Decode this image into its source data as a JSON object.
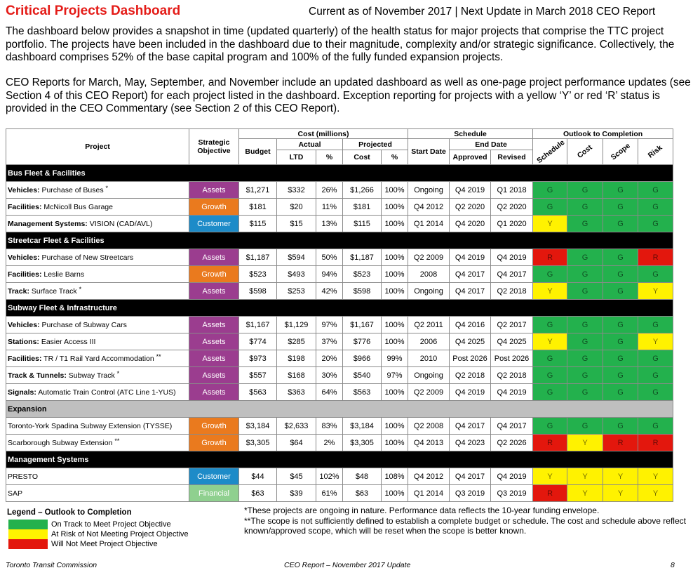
{
  "header": {
    "title": "Critical Projects Dashboard",
    "status": "Current as of November 2017 | Next Update in March 2018 CEO Report"
  },
  "intro": [
    "The dashboard below provides a snapshot in time (updated quarterly) of the health status for major projects that comprise the TTC project portfolio. The projects have been included in the dashboard due to their magnitude, complexity and/or strategic significance. Collectively, the dashboard comprises 52% of the base capital program and 100% of the fully funded expansion projects.",
    "CEO Reports for March, May, September, and November include an updated dashboard as well as one-page project performance updates (see Section 4 of this CEO Report) for each project listed in the dashboard.  Exception reporting for projects with a yellow ‘Y’ or red ‘R’ status is provided in the CEO Commentary (see Section 2 of this CEO Report)."
  ],
  "table": {
    "columns": {
      "project": "Project",
      "objective": "Strategic Objective",
      "cost_group": "Cost (millions)",
      "budget": "Budget",
      "actual": "Actual",
      "ltd": "LTD",
      "ltd_pct": "%",
      "projected": "Projected",
      "projected_cost": "Cost",
      "projected_pct": "%",
      "schedule_group": "Schedule",
      "start": "Start Date",
      "end_date": "End Date",
      "approved": "Approved",
      "revised": "Revised",
      "outlook_group": "Outlook to Completion",
      "outlook": [
        "Schedule",
        "Cost",
        "Scope",
        "Risk"
      ]
    },
    "objective_colors": {
      "Assets": "#9b3d8f",
      "Growth": "#ea7a1e",
      "Customer": "#1d8bc8",
      "Financial": "#8fd08f"
    },
    "outlook_colors": {
      "G": "#23b14d",
      "Y": "#fff200",
      "R": "#e3170d"
    },
    "sections": [
      {
        "name": "Bus Fleet & Facilities",
        "color": "#000000",
        "rows": [
          {
            "label": "Vehicles:",
            "project": "Purchase of Buses",
            "mark": "*",
            "objective": "Assets",
            "budget": "$1,271",
            "ltd": "$332",
            "ltd_pct": "26%",
            "projected_cost": "$1,266",
            "projected_pct": "100%",
            "start": "Ongoing",
            "approved": "Q4 2019",
            "revised": "Q1 2018",
            "outlook": [
              "G",
              "G",
              "G",
              "G"
            ]
          },
          {
            "label": "Facilities:",
            "project": "McNicoll Bus Garage",
            "objective": "Growth",
            "budget": "$181",
            "ltd": "$20",
            "ltd_pct": "11%",
            "projected_cost": "$181",
            "projected_pct": "100%",
            "start": "Q4 2012",
            "approved": "Q2 2020",
            "revised": "Q2 2020",
            "outlook": [
              "G",
              "G",
              "G",
              "G"
            ]
          },
          {
            "label": "Management Systems:",
            "project": "VISION (CAD/AVL)",
            "objective": "Customer",
            "budget": "$115",
            "ltd": "$15",
            "ltd_pct": "13%",
            "projected_cost": "$115",
            "projected_pct": "100%",
            "start": "Q1 2014",
            "approved": "Q4 2020",
            "revised": "Q1 2020",
            "outlook": [
              "Y",
              "G",
              "G",
              "G"
            ]
          }
        ]
      },
      {
        "name": "Streetcar Fleet & Facilities",
        "color": "#000000",
        "rows": [
          {
            "label": "Vehicles:",
            "project": "Purchase of New Streetcars",
            "objective": "Assets",
            "budget": "$1,187",
            "ltd": "$594",
            "ltd_pct": "50%",
            "projected_cost": "$1,187",
            "projected_pct": "100%",
            "start": "Q2 2009",
            "approved": "Q4 2019",
            "revised": "Q4 2019",
            "outlook": [
              "R",
              "G",
              "G",
              "R"
            ]
          },
          {
            "label": "Facilities:",
            "project": "Leslie Barns",
            "objective": "Growth",
            "budget": "$523",
            "ltd": "$493",
            "ltd_pct": "94%",
            "projected_cost": "$523",
            "projected_pct": "100%",
            "start": "2008",
            "approved": "Q4 2017",
            "revised": "Q4 2017",
            "outlook": [
              "G",
              "G",
              "G",
              "G"
            ]
          },
          {
            "label": "Track:",
            "project": "Surface Track",
            "mark": "*",
            "objective": "Assets",
            "budget": "$598",
            "ltd": "$253",
            "ltd_pct": "42%",
            "projected_cost": "$598",
            "projected_pct": "100%",
            "start": "Ongoing",
            "approved": "Q4 2017",
            "revised": "Q2 2018",
            "outlook": [
              "Y",
              "G",
              "G",
              "Y"
            ]
          }
        ]
      },
      {
        "name": "Subway Fleet & Infrastructure",
        "color": "#000000",
        "rows": [
          {
            "label": "Vehicles:",
            "project": "Purchase of Subway Cars",
            "objective": "Assets",
            "budget": "$1,167",
            "ltd": "$1,129",
            "ltd_pct": "97%",
            "projected_cost": "$1,167",
            "projected_pct": "100%",
            "start": "Q2 2011",
            "approved": "Q4 2016",
            "revised": "Q2 2017",
            "outlook": [
              "G",
              "G",
              "G",
              "G"
            ]
          },
          {
            "label": "Stations:",
            "project": "Easier Access III",
            "objective": "Assets",
            "budget": "$774",
            "ltd": "$285",
            "ltd_pct": "37%",
            "projected_cost": "$776",
            "projected_pct": "100%",
            "start": "2006",
            "approved": "Q4 2025",
            "revised": "Q4 2025",
            "outlook": [
              "Y",
              "G",
              "G",
              "Y"
            ]
          },
          {
            "label": "Facilities:",
            "project": "TR / T1 Rail Yard Accommodation",
            "mark": "**",
            "objective": "Assets",
            "budget": "$973",
            "ltd": "$198",
            "ltd_pct": "20%",
            "projected_cost": "$966",
            "projected_pct": "99%",
            "start": "2010",
            "approved": "Post 2026",
            "revised": "Post 2026",
            "outlook": [
              "G",
              "G",
              "G",
              "G"
            ]
          },
          {
            "label": "Track & Tunnels:",
            "project": "Subway Track",
            "mark": "*",
            "objective": "Assets",
            "budget": "$557",
            "ltd": "$168",
            "ltd_pct": "30%",
            "projected_cost": "$540",
            "projected_pct": "97%",
            "start": "Ongoing",
            "approved": "Q2 2018",
            "revised": "Q2 2018",
            "outlook": [
              "G",
              "G",
              "G",
              "G"
            ]
          },
          {
            "label": "Signals:",
            "project": "Automatic Train Control (ATC Line 1-YUS)",
            "objective": "Assets",
            "budget": "$563",
            "ltd": "$363",
            "ltd_pct": "64%",
            "projected_cost": "$563",
            "projected_pct": "100%",
            "start": "Q2 2009",
            "approved": "Q4 2019",
            "revised": "Q4 2019",
            "outlook": [
              "G",
              "G",
              "G",
              "G"
            ]
          }
        ]
      },
      {
        "name": "Expansion",
        "color": "#bfbfbf",
        "rows": [
          {
            "project": "Toronto-York Spadina Subway Extension (TYSSE)",
            "objective": "Growth",
            "budget": "$3,184",
            "ltd": "$2,633",
            "ltd_pct": "83%",
            "projected_cost": "$3,184",
            "projected_pct": "100%",
            "start": "Q2 2008",
            "approved": "Q4 2017",
            "revised": "Q4 2017",
            "outlook": [
              "G",
              "G",
              "G",
              "G"
            ]
          },
          {
            "project": "Scarborough Subway Extension",
            "mark": "**",
            "objective": "Growth",
            "budget": "$3,305",
            "ltd": "$64",
            "ltd_pct": "2%",
            "projected_cost": "$3,305",
            "projected_pct": "100%",
            "start": "Q4 2013",
            "approved": "Q4 2023",
            "revised": "Q2 2026",
            "outlook": [
              "R",
              "Y",
              "R",
              "R"
            ]
          }
        ]
      },
      {
        "name": "Management Systems",
        "color": "#000000",
        "rows": [
          {
            "project": "PRESTO",
            "objective": "Customer",
            "budget": "$44",
            "ltd": "$45",
            "ltd_pct": "102%",
            "projected_cost": "$48",
            "projected_pct": "108%",
            "start": "Q4 2012",
            "approved": "Q4 2017",
            "revised": "Q4 2019",
            "outlook": [
              "Y",
              "Y",
              "Y",
              "Y"
            ]
          },
          {
            "project": "SAP",
            "objective": "Financial",
            "budget": "$63",
            "ltd": "$39",
            "ltd_pct": "61%",
            "projected_cost": "$63",
            "projected_pct": "100%",
            "start": "Q1 2014",
            "approved": "Q3 2019",
            "revised": "Q3 2019",
            "outlook": [
              "R",
              "Y",
              "Y",
              "Y"
            ]
          }
        ]
      }
    ]
  },
  "legend": {
    "title": "Legend – Outlook to Completion",
    "items": [
      {
        "label": "On Track to Meet Project Objective",
        "color": "#23b14d"
      },
      {
        "label": "At Risk of Not Meeting Project Objective",
        "color": "#fff200"
      },
      {
        "label": "Will Not Meet Project Objective",
        "color": "#e3170d"
      }
    ]
  },
  "notes": [
    "*These projects are ongoing in nature. Performance data reflects the 10-year funding envelope.",
    "**The scope is not sufficiently defined to establish a complete budget or schedule.  The cost and schedule above reflect known/approved scope, which will be reset when the scope is better known."
  ],
  "footer": {
    "left": "Toronto Transit Commission",
    "center": "CEO Report – November 2017 Update",
    "page": "8"
  }
}
